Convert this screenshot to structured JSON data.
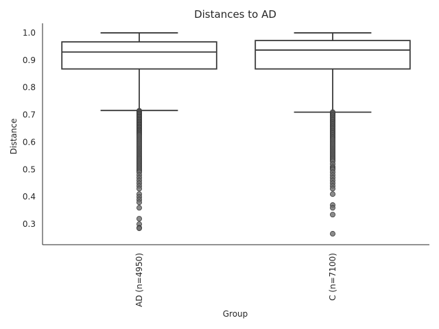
{
  "chart_data": {
    "type": "box",
    "title": "Distances to AD",
    "xlabel": "Group",
    "ylabel": "Distance",
    "ylim": [
      0.225,
      1.035
    ],
    "yticks": [
      0.3,
      0.4,
      0.5,
      0.6,
      0.7,
      0.8,
      0.9,
      1.0
    ],
    "ytick_labels": [
      "0.3",
      "0.4",
      "0.5",
      "0.6",
      "0.7",
      "0.8",
      "0.9",
      "1.0"
    ],
    "grid": false,
    "categories": [
      "AD (n=4950)",
      "C (n=7100)"
    ],
    "boxes": [
      {
        "label": "AD (n=4950)",
        "whisker_low": 0.716,
        "q1": 0.868,
        "median": 0.93,
        "q3": 0.967,
        "whisker_high": 1.0,
        "outliers": [
          0.715,
          0.712,
          0.708,
          0.705,
          0.702,
          0.698,
          0.695,
          0.692,
          0.688,
          0.685,
          0.682,
          0.678,
          0.675,
          0.672,
          0.668,
          0.665,
          0.662,
          0.658,
          0.655,
          0.652,
          0.648,
          0.645,
          0.642,
          0.638,
          0.635,
          0.632,
          0.628,
          0.625,
          0.62,
          0.615,
          0.61,
          0.605,
          0.6,
          0.595,
          0.59,
          0.585,
          0.58,
          0.575,
          0.57,
          0.565,
          0.56,
          0.555,
          0.55,
          0.545,
          0.54,
          0.535,
          0.53,
          0.525,
          0.52,
          0.515,
          0.51,
          0.505,
          0.5,
          0.495,
          0.49,
          0.48,
          0.47,
          0.46,
          0.45,
          0.44,
          0.43,
          0.41,
          0.4,
          0.39,
          0.38,
          0.36,
          0.32,
          0.3,
          0.287,
          0.285
        ]
      },
      {
        "label": "C (n=7100)",
        "whisker_low": 0.71,
        "q1": 0.868,
        "median": 0.937,
        "q3": 0.972,
        "whisker_high": 1.0,
        "outliers": [
          0.71,
          0.706,
          0.702,
          0.698,
          0.694,
          0.69,
          0.686,
          0.682,
          0.678,
          0.674,
          0.67,
          0.666,
          0.662,
          0.658,
          0.654,
          0.65,
          0.646,
          0.642,
          0.638,
          0.634,
          0.63,
          0.626,
          0.622,
          0.618,
          0.614,
          0.61,
          0.605,
          0.6,
          0.595,
          0.59,
          0.585,
          0.58,
          0.575,
          0.57,
          0.565,
          0.56,
          0.555,
          0.55,
          0.545,
          0.54,
          0.535,
          0.53,
          0.52,
          0.51,
          0.505,
          0.5,
          0.49,
          0.48,
          0.47,
          0.46,
          0.45,
          0.44,
          0.43,
          0.41,
          0.37,
          0.36,
          0.335,
          0.265
        ]
      }
    ]
  }
}
